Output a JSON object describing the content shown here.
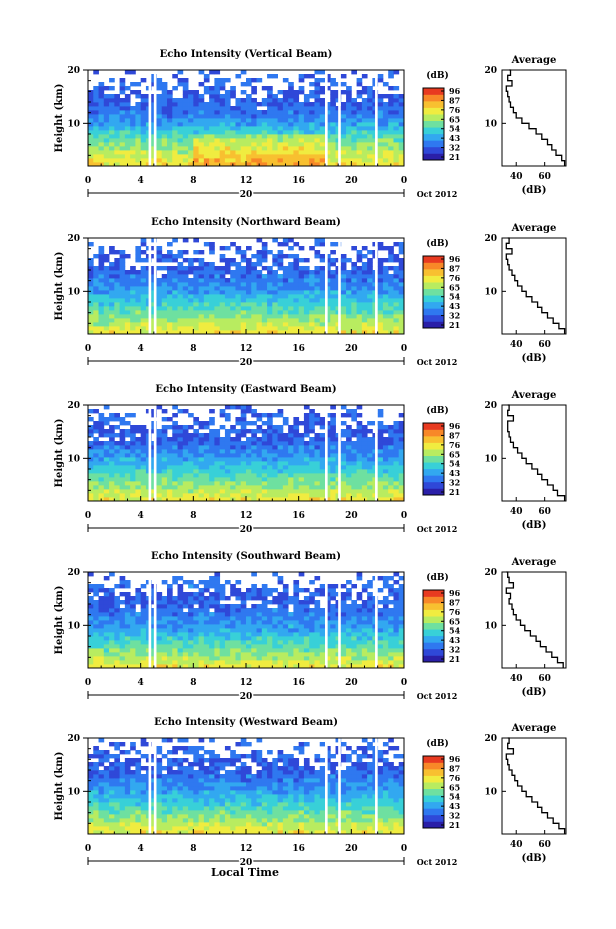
{
  "figure": {
    "xlabel": "Local Time",
    "date": "Oct 2012"
  },
  "colorbar": {
    "unit": "(dB)",
    "ticks": [
      "96",
      "87",
      "76",
      "65",
      "54",
      "43",
      "32",
      "21"
    ],
    "colors": [
      "#2a1fa8",
      "#2f48d8",
      "#2f78f0",
      "#32a8f0",
      "#38d0d8",
      "#6ee0a0",
      "#b8ec60",
      "#f0ec40",
      "#f8c030",
      "#f88828",
      "#e83a20"
    ]
  },
  "chart_data": [
    {
      "type": "heatmap",
      "title": "Echo Intensity (Vertical Beam)",
      "ylabel": "Height (km)",
      "x_ticks": [
        "0",
        "4",
        "8",
        "12",
        "16",
        "20",
        "0"
      ],
      "date_label": "20",
      "y_ticks": [
        "20",
        "10"
      ],
      "xlim": [
        0,
        24
      ],
      "ylim": [
        2,
        20
      ],
      "color_range_db": [
        21,
        96
      ],
      "gaps_hours": [
        [
          4.6,
          4.8
        ],
        [
          5.0,
          5.2
        ],
        [
          18.0,
          18.2
        ],
        [
          19.0,
          19.2
        ],
        [
          21.8,
          22.0
        ]
      ],
      "profile": {
        "title": "Average",
        "xlabel": "(dB)",
        "x_ticks": [
          "40",
          "60"
        ],
        "y_ticks": [
          "20",
          "10"
        ],
        "xlim": [
          30,
          75
        ],
        "ylim": [
          2,
          20
        ],
        "height_km": [
          2,
          3,
          4,
          5,
          6,
          7,
          8,
          9,
          10,
          11,
          12,
          13,
          14,
          15,
          16,
          17,
          18,
          19,
          20
        ],
        "mean_db": [
          74,
          72,
          68,
          65,
          62,
          58,
          54,
          49,
          44,
          40,
          38,
          36,
          35,
          34,
          33,
          37,
          34,
          36,
          35
        ]
      }
    },
    {
      "type": "heatmap",
      "title": "Echo Intensity (Northward Beam)",
      "ylabel": "Height (km)",
      "x_ticks": [
        "0",
        "4",
        "8",
        "12",
        "16",
        "20",
        "0"
      ],
      "date_label": "20",
      "y_ticks": [
        "20",
        "10"
      ],
      "xlim": [
        0,
        24
      ],
      "ylim": [
        2,
        20
      ],
      "color_range_db": [
        21,
        96
      ],
      "gaps_hours": [
        [
          4.6,
          4.8
        ],
        [
          5.0,
          5.2
        ],
        [
          18.0,
          18.2
        ],
        [
          19.0,
          19.2
        ],
        [
          21.8,
          22.0
        ]
      ],
      "profile": {
        "title": "Average",
        "xlabel": "(dB)",
        "x_ticks": [
          "40",
          "60"
        ],
        "y_ticks": [
          "20",
          "10"
        ],
        "xlim": [
          30,
          75
        ],
        "ylim": [
          2,
          20
        ],
        "height_km": [
          2,
          3,
          4,
          5,
          6,
          7,
          8,
          9,
          10,
          11,
          12,
          13,
          14,
          15,
          16,
          17,
          18,
          19,
          20
        ],
        "mean_db": [
          74,
          70,
          66,
          62,
          58,
          55,
          51,
          47,
          44,
          41,
          39,
          37,
          35,
          34,
          33,
          37,
          33,
          35,
          34
        ]
      }
    },
    {
      "type": "heatmap",
      "title": "Echo Intensity (Eastward Beam)",
      "ylabel": "Height (km)",
      "x_ticks": [
        "0",
        "4",
        "8",
        "12",
        "16",
        "20",
        "0"
      ],
      "date_label": "20",
      "y_ticks": [
        "20",
        "10"
      ],
      "xlim": [
        0,
        24
      ],
      "ylim": [
        2,
        20
      ],
      "color_range_db": [
        21,
        96
      ],
      "gaps_hours": [
        [
          4.6,
          4.8
        ],
        [
          5.0,
          5.2
        ],
        [
          18.0,
          18.2
        ],
        [
          19.0,
          19.2
        ],
        [
          21.8,
          22.0
        ]
      ],
      "profile": {
        "title": "Average",
        "xlabel": "(dB)",
        "x_ticks": [
          "40",
          "60"
        ],
        "y_ticks": [
          "20",
          "10"
        ],
        "xlim": [
          30,
          75
        ],
        "ylim": [
          2,
          20
        ],
        "height_km": [
          2,
          3,
          4,
          5,
          6,
          7,
          8,
          9,
          10,
          11,
          12,
          13,
          14,
          15,
          16,
          17,
          18,
          19,
          20
        ],
        "mean_db": [
          74,
          69,
          66,
          62,
          58,
          55,
          51,
          47,
          44,
          41,
          38,
          36,
          35,
          34,
          34,
          38,
          34,
          35,
          34
        ]
      }
    },
    {
      "type": "heatmap",
      "title": "Echo Intensity (Southward Beam)",
      "ylabel": "Height (km)",
      "x_ticks": [
        "0",
        "4",
        "8",
        "12",
        "16",
        "20",
        "0"
      ],
      "date_label": "20",
      "y_ticks": [
        "20",
        "10"
      ],
      "xlim": [
        0,
        24
      ],
      "ylim": [
        2,
        20
      ],
      "color_range_db": [
        21,
        96
      ],
      "gaps_hours": [
        [
          4.6,
          4.8
        ],
        [
          5.0,
          5.2
        ],
        [
          18.0,
          18.2
        ],
        [
          19.0,
          19.2
        ],
        [
          21.8,
          22.0
        ]
      ],
      "profile": {
        "title": "Average",
        "xlabel": "(dB)",
        "x_ticks": [
          "40",
          "60"
        ],
        "y_ticks": [
          "20",
          "10"
        ],
        "xlim": [
          30,
          75
        ],
        "ylim": [
          2,
          20
        ],
        "height_km": [
          2,
          3,
          4,
          5,
          6,
          7,
          8,
          9,
          10,
          11,
          12,
          13,
          14,
          15,
          16,
          17,
          18,
          19,
          20
        ],
        "mean_db": [
          73,
          69,
          65,
          61,
          57,
          54,
          50,
          46,
          43,
          40,
          38,
          37,
          35,
          36,
          33,
          38,
          35,
          34,
          33
        ]
      }
    },
    {
      "type": "heatmap",
      "title": "Echo Intensity (Westward Beam)",
      "ylabel": "Height (km)",
      "x_ticks": [
        "0",
        "4",
        "8",
        "12",
        "16",
        "20",
        "0"
      ],
      "date_label": "20",
      "y_ticks": [
        "20",
        "10"
      ],
      "xlim": [
        0,
        24
      ],
      "ylim": [
        2,
        20
      ],
      "color_range_db": [
        21,
        96
      ],
      "gaps_hours": [
        [
          4.6,
          4.8
        ],
        [
          5.0,
          5.2
        ],
        [
          18.0,
          18.2
        ],
        [
          19.0,
          19.2
        ],
        [
          21.8,
          22.0
        ]
      ],
      "profile": {
        "title": "Average",
        "xlabel": "(dB)",
        "x_ticks": [
          "40",
          "60"
        ],
        "y_ticks": [
          "20",
          "10"
        ],
        "xlim": [
          30,
          75
        ],
        "ylim": [
          2,
          20
        ],
        "height_km": [
          2,
          3,
          4,
          5,
          6,
          7,
          8,
          9,
          10,
          11,
          12,
          13,
          14,
          15,
          16,
          17,
          18,
          19,
          20
        ],
        "mean_db": [
          74,
          70,
          66,
          62,
          58,
          55,
          51,
          47,
          44,
          41,
          39,
          37,
          35,
          34,
          33,
          38,
          34,
          35,
          34
        ]
      }
    }
  ]
}
